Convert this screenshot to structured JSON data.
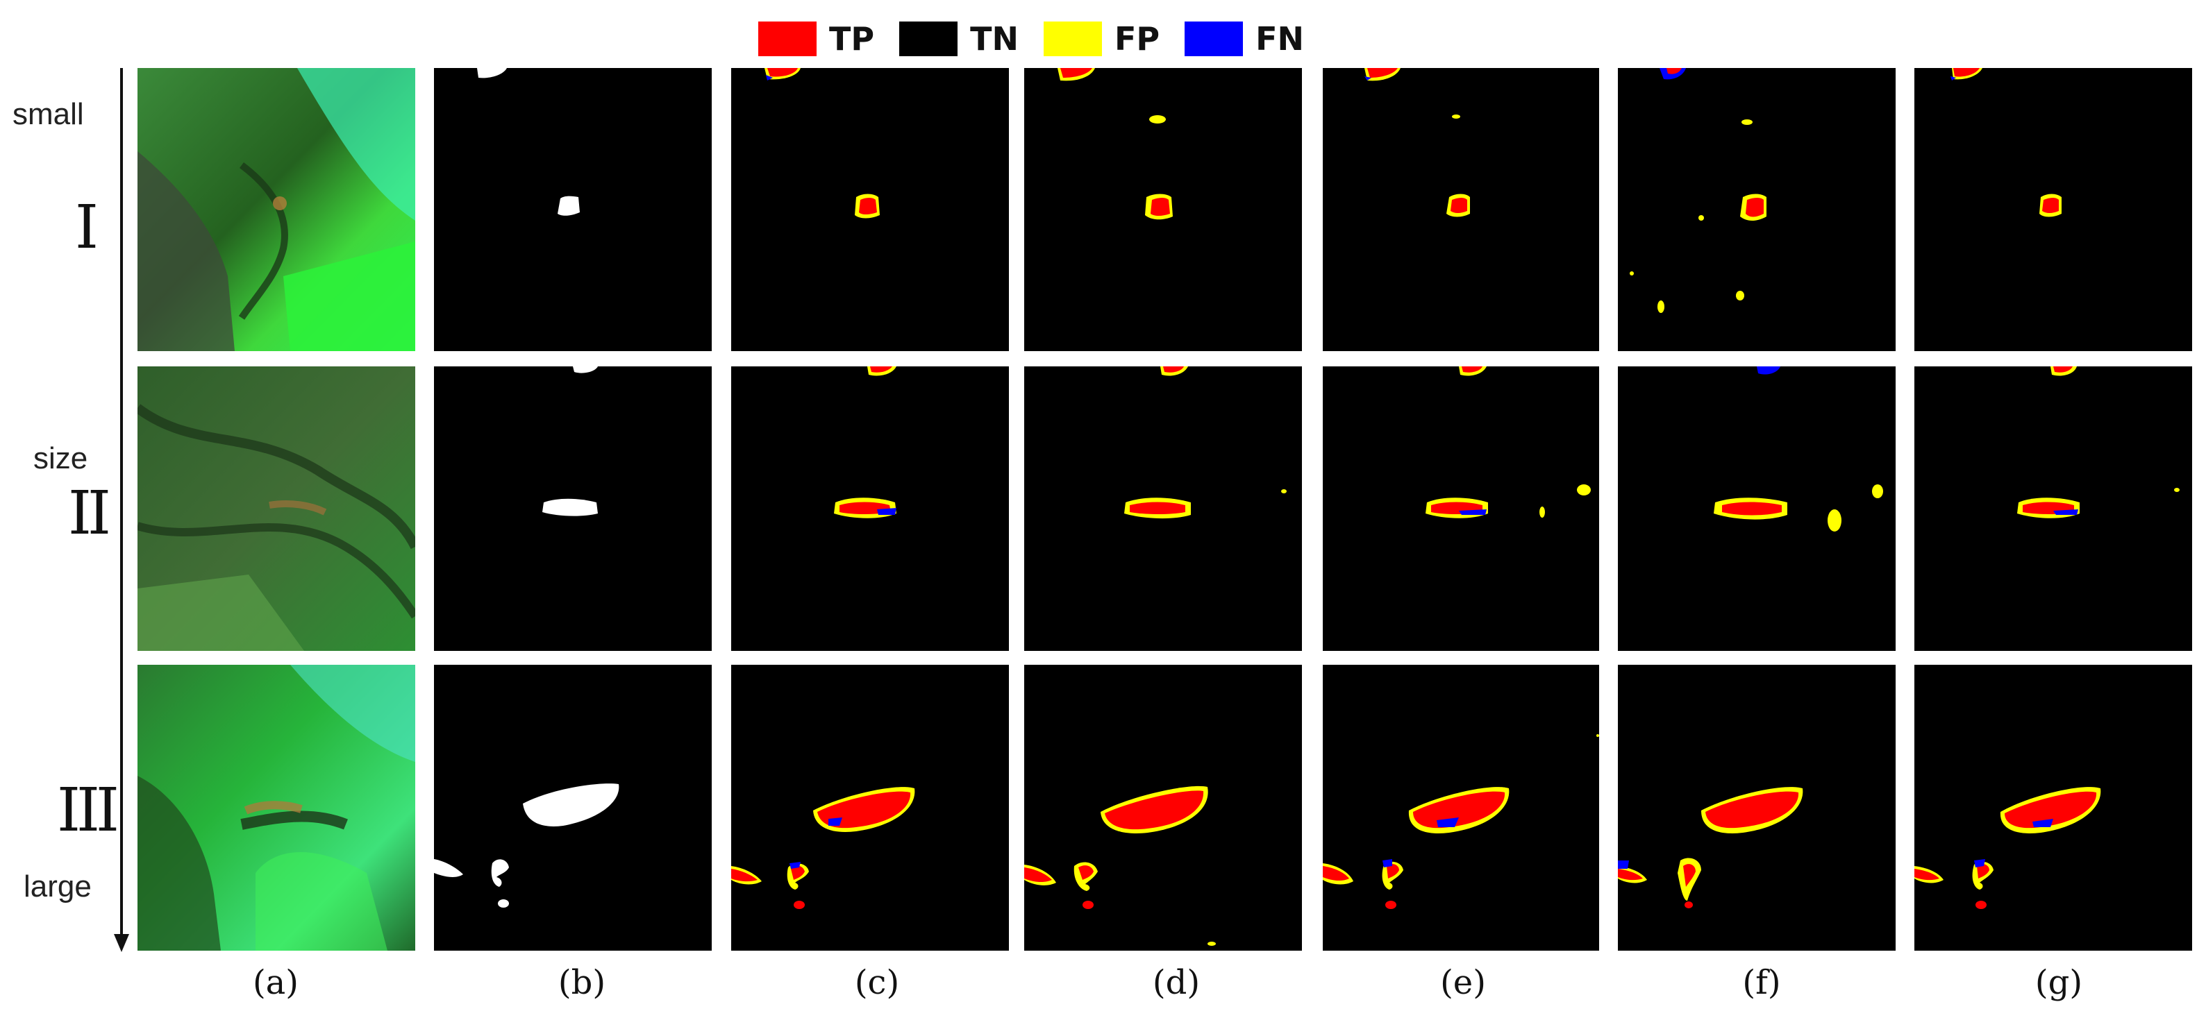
{
  "legend": {
    "items": [
      {
        "label": "TP",
        "color": "#ff0000"
      },
      {
        "label": "TN",
        "color": "#000000"
      },
      {
        "label": "FP",
        "color": "#ffff00"
      },
      {
        "label": "FN",
        "color": "#0000ff"
      }
    ]
  },
  "axis": {
    "small_label": "small",
    "size_label": "size",
    "large_label": "large"
  },
  "rows": [
    {
      "label": "I"
    },
    {
      "label": "II"
    },
    {
      "label": "III"
    }
  ],
  "columns": [
    {
      "label": "(a)"
    },
    {
      "label": "(b)"
    },
    {
      "label": "(c)"
    },
    {
      "label": "(d)"
    },
    {
      "label": "(e)"
    },
    {
      "label": "(f)"
    },
    {
      "label": "(g)"
    }
  ],
  "colors": {
    "tp": "#ff0000",
    "tn": "#000000",
    "fp": "#ffff00",
    "fn": "#0000ff",
    "ground_truth": "#ffffff",
    "terrain_green": "#29e62e",
    "terrain_dark": "#1f4a1c"
  }
}
